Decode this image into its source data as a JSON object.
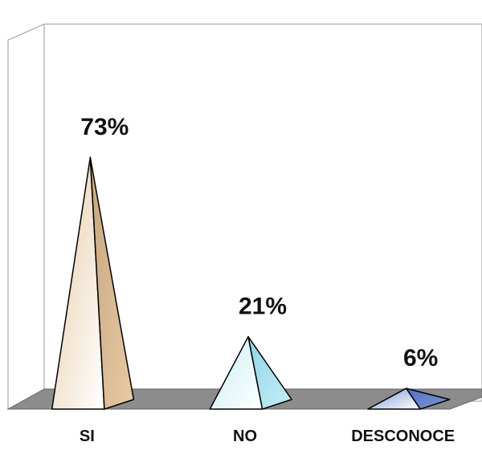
{
  "chart_data": {
    "type": "bar",
    "bar_shape": "pyramid",
    "categories": [
      "SI",
      "NO",
      "DESCONOCE"
    ],
    "values": [
      73,
      21,
      6
    ],
    "value_labels": [
      "73%",
      "21%",
      "6%"
    ],
    "ylim": [
      0,
      100
    ],
    "grid": false,
    "legend": "none",
    "colors": {
      "si": [
        "#e7cba6",
        "#c7a57f"
      ],
      "no": [
        "#c7edf6",
        "#8fd5e8"
      ],
      "desconoce": [
        "#7d97d7",
        "#4f6fbf"
      ],
      "floor": "#8c8c8c",
      "wall": "#ffffff",
      "outline": "#000000"
    }
  }
}
